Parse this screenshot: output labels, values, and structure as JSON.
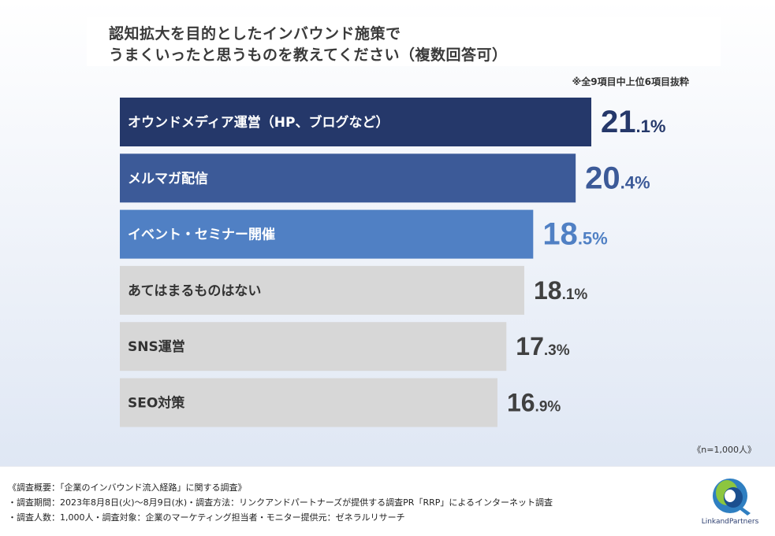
{
  "title": {
    "line1": "認知拡大を目的としたインバウンド施策で",
    "line2": "うまくいったと思うものを教えてください（複数回答可）"
  },
  "note": "※全9項目中上位6項目抜粋",
  "sample_note": "《n=1,000人》",
  "footer": {
    "line1": "《調査概要：「企業のインバウンド流入経路」に関する調査》",
    "line2": "・調査期間：2023年8月8日(火)〜8月9日(水)・調査方法：リンクアンドパートナーズが提供する調査PR「RRP」によるインターネット調査",
    "line3": "・調査人数：1,000人・調査対象：企業のマーケティング担当者・モニター提供元：ゼネラルリサーチ"
  },
  "logo": {
    "text": "LinkandPartners"
  },
  "colors": {
    "bar1": "#25386a",
    "bar2": "#3c5a98",
    "bar3": "#5080c4",
    "bar_other": "#d7d7d7",
    "label_light": "#ffffff",
    "label_dark": "#333333",
    "value_other": "#404040"
  },
  "chart_data": {
    "type": "bar",
    "orientation": "horizontal",
    "title": "認知拡大を目的としたインバウンド施策でうまくいったと思うものを教えてください（複数回答可）",
    "unit": "%",
    "xlim": [
      0,
      21.1
    ],
    "categories": [
      "オウンドメディア運営（HP、ブログなど）",
      "メルマガ配信",
      "イベント・セミナー開催",
      "あてはまるものはない",
      "SNS運営",
      "SEO対策"
    ],
    "values": [
      21.1,
      20.4,
      18.5,
      18.1,
      17.3,
      16.9
    ],
    "value_labels": [
      {
        "int": "21",
        "dec": ".1%"
      },
      {
        "int": "20",
        "dec": ".4%"
      },
      {
        "int": "18",
        "dec": ".5%"
      },
      {
        "int": "18",
        "dec": ".1%"
      },
      {
        "int": "17",
        "dec": ".3%"
      },
      {
        "int": "16",
        "dec": ".9%"
      }
    ],
    "highlight_count": 3
  }
}
